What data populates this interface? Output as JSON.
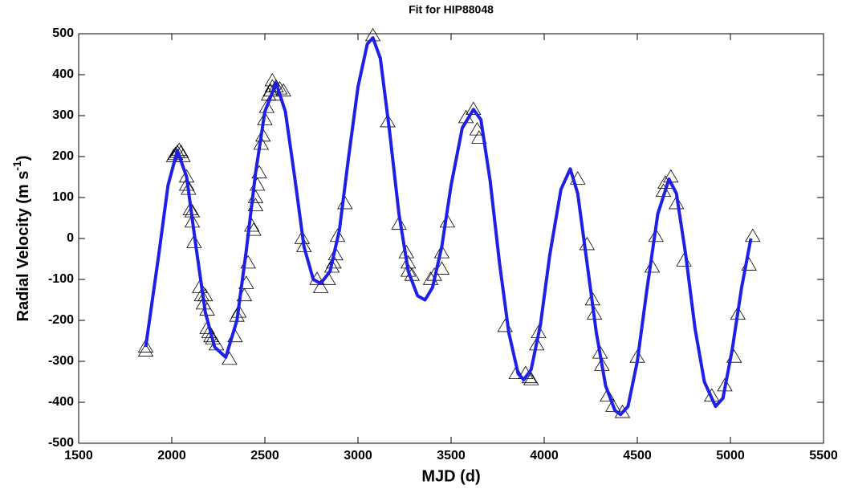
{
  "chart_data": {
    "type": "scatter",
    "title": "Fit for HIP88048",
    "xlabel": "MJD (d)",
    "ylabel": [
      "Radial Velocity (m s",
      "-1",
      ")"
    ],
    "xlim": [
      1500,
      5500
    ],
    "xticks": [
      1500,
      2000,
      2500,
      3000,
      3500,
      4000,
      4500,
      5000,
      5500
    ],
    "ylim": [
      -500,
      500
    ],
    "yticks": [
      -500,
      -400,
      -300,
      -200,
      -100,
      0,
      100,
      200,
      300,
      400,
      500
    ],
    "grid": false,
    "series": [
      {
        "type": "scatter",
        "marker": "triangle",
        "color": "#000000",
        "x": [
          1860,
          1860,
          2010,
          2020,
          2030,
          2040,
          2050,
          2060,
          2080,
          2080,
          2090,
          2100,
          2110,
          2110,
          2120,
          2150,
          2160,
          2170,
          2180,
          2190,
          2190,
          2200,
          2210,
          2220,
          2240,
          2310,
          2340,
          2350,
          2360,
          2390,
          2400,
          2410,
          2430,
          2440,
          2450,
          2450,
          2460,
          2470,
          2480,
          2490,
          2500,
          2510,
          2520,
          2530,
          2540,
          2540,
          2550,
          2560,
          2580,
          2600,
          2700,
          2710,
          2780,
          2800,
          2840,
          2860,
          2870,
          2880,
          2890,
          2930,
          3080,
          3160,
          3220,
          3260,
          3270,
          3270,
          3290,
          3390,
          3410,
          3450,
          3450,
          3480,
          3580,
          3620,
          3640,
          3650,
          3790,
          3850,
          3900,
          3920,
          3930,
          3960,
          3970,
          4180,
          4230,
          4260,
          4270,
          4300,
          4310,
          4340,
          4370,
          4420,
          4500,
          4580,
          4600,
          4640,
          4650,
          4680,
          4710,
          4750,
          4900,
          4970,
          5020,
          5040,
          5100,
          5120
        ],
        "values": [
          -265,
          -275,
          200,
          205,
          210,
          215,
          210,
          200,
          150,
          130,
          120,
          70,
          40,
          65,
          -10,
          -120,
          -140,
          -160,
          -140,
          -175,
          -220,
          -230,
          -240,
          -245,
          -260,
          -295,
          -240,
          -190,
          -180,
          -140,
          -110,
          -60,
          30,
          20,
          80,
          100,
          130,
          160,
          230,
          250,
          290,
          320,
          350,
          360,
          370,
          385,
          350,
          370,
          365,
          360,
          0,
          -20,
          -100,
          -120,
          -100,
          -70,
          -60,
          -40,
          5,
          85,
          495,
          285,
          35,
          -35,
          -60,
          -80,
          -90,
          -100,
          -90,
          -75,
          -35,
          40,
          295,
          315,
          265,
          245,
          -215,
          -330,
          -330,
          -340,
          -345,
          -260,
          -230,
          145,
          -15,
          -150,
          -185,
          -280,
          -310,
          -385,
          -410,
          -425,
          -290,
          -70,
          5,
          115,
          135,
          150,
          85,
          -55,
          -385,
          -360,
          -290,
          -185,
          -65,
          5
        ]
      },
      {
        "type": "line",
        "color": "#1f1fe6",
        "x": [
          1860,
          1930,
          1980,
          2030,
          2080,
          2130,
          2180,
          2230,
          2290,
          2350,
          2400,
          2450,
          2500,
          2560,
          2610,
          2660,
          2710,
          2760,
          2800,
          2850,
          2900,
          2950,
          3000,
          3050,
          3080,
          3120,
          3170,
          3220,
          3270,
          3320,
          3360,
          3400,
          3450,
          3500,
          3560,
          3620,
          3660,
          3710,
          3760,
          3810,
          3860,
          3890,
          3930,
          3980,
          4030,
          4090,
          4140,
          4180,
          4230,
          4280,
          4330,
          4380,
          4410,
          4450,
          4500,
          4550,
          4610,
          4670,
          4710,
          4760,
          4810,
          4860,
          4920,
          4960,
          5010,
          5060,
          5110
        ],
        "values": [
          -265,
          -40,
          130,
          215,
          150,
          -20,
          -180,
          -265,
          -290,
          -200,
          -30,
          160,
          310,
          380,
          310,
          150,
          -20,
          -100,
          -110,
          -80,
          20,
          200,
          370,
          475,
          490,
          440,
          260,
          60,
          -80,
          -140,
          -150,
          -120,
          -20,
          130,
          270,
          315,
          290,
          140,
          -60,
          -230,
          -330,
          -345,
          -320,
          -210,
          -40,
          120,
          170,
          110,
          -60,
          -230,
          -360,
          -420,
          -430,
          -410,
          -300,
          -130,
          60,
          145,
          110,
          -40,
          -220,
          -350,
          -410,
          -390,
          -270,
          -120,
          0
        ]
      }
    ]
  }
}
